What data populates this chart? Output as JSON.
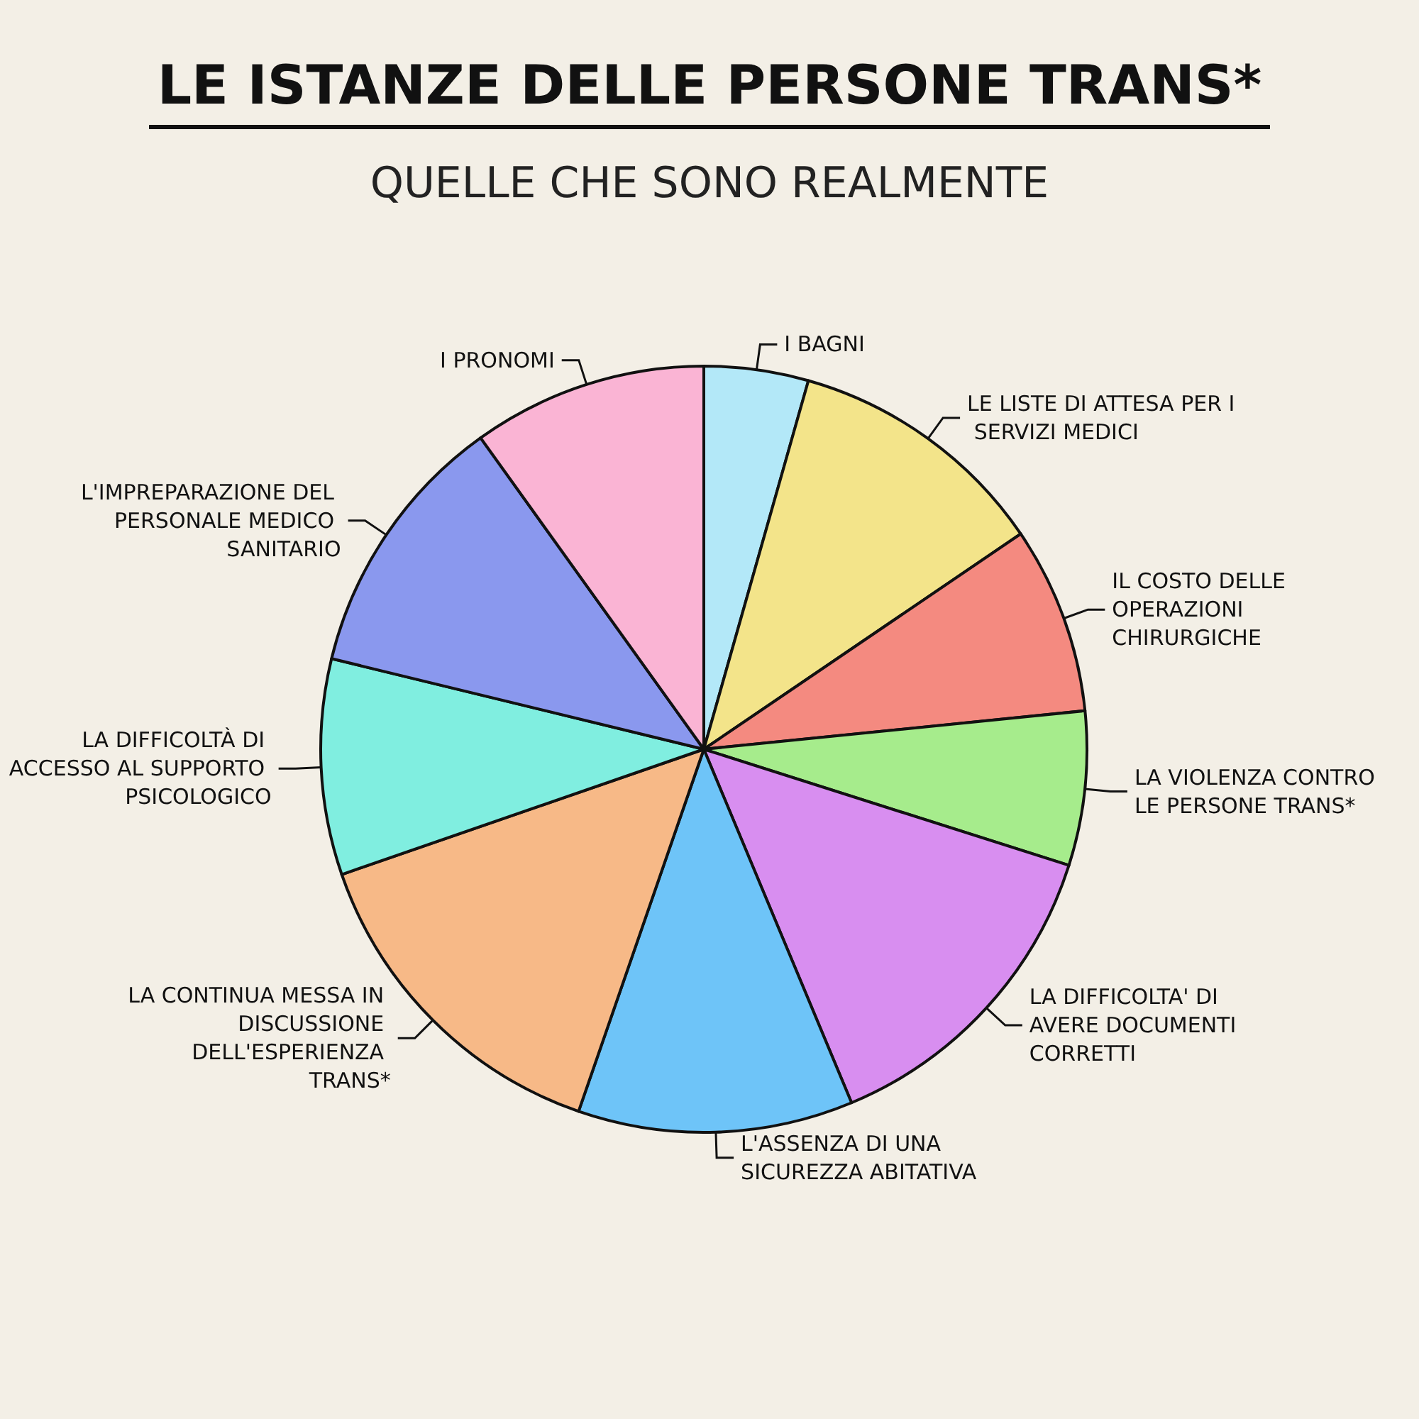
{
  "chart_data": {
    "type": "pie",
    "title": "LE ISTANZE DELLE PERSONE TRANS*",
    "subtitle": "QUELLE CHE SONO REALMENTE",
    "categories": [
      "I BAGNI",
      "LE LISTE DI ATTESA PER I SERVIZI MEDICI",
      "IL COSTO DELLE OPERAZIONI CHIRURGICHE",
      "LA VIOLENZA CONTRO LE PERSONE TRANS*",
      "LA DIFFICOLTA' DI AVERE DOCUMENTI CORRETTI",
      "L'ASSENZA DI UNA SICUREZZA ABITATIVA",
      "LA CONTINUA MESSA IN DISCUSSIONE DELL'ESPERIENZA TRANS*",
      "LA DIFFICOLTÀ DI ACCESSO AL SUPPORTO PSICOLOGICO",
      "L'IMPREPARAZIONE DEL PERSONALE MEDICO SANITARIO",
      "I PRONOMI"
    ],
    "values": [
      4.4,
      11.1,
      7.9,
      6.5,
      13.8,
      11.6,
      14.4,
      9.1,
      11.3,
      9.9
    ],
    "colors": [
      "#b3e8f8",
      "#f3e48a",
      "#f48a80",
      "#a6ec8c",
      "#d88ef0",
      "#6ec4f8",
      "#f7b987",
      "#80eee0",
      "#8a98ee",
      "#fab4d4"
    ],
    "legend": false
  }
}
